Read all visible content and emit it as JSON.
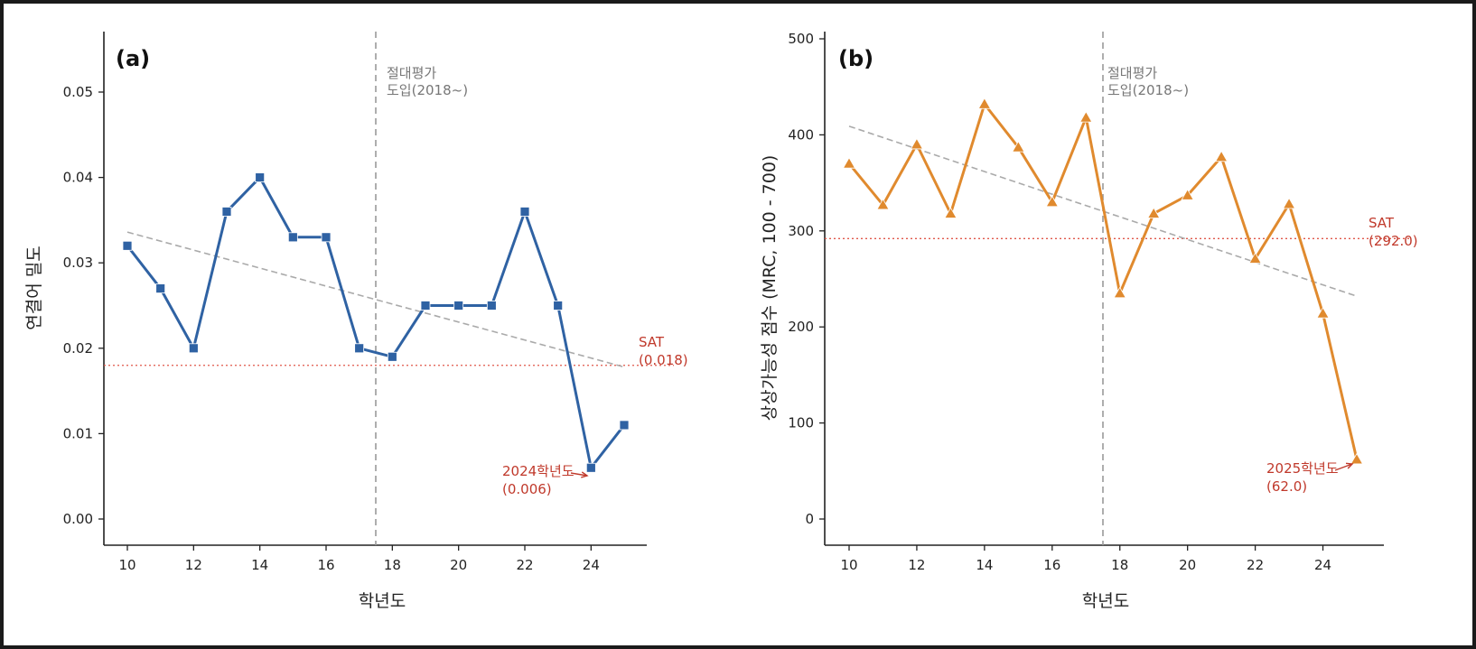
{
  "chart_data": [
    {
      "type": "line",
      "panel_label": "(a)",
      "xlabel": "학년도",
      "ylabel": "연결어 밀도",
      "xlim": [
        10,
        25
      ],
      "ylim": [
        0.0,
        0.05
      ],
      "xticks": [
        10,
        12,
        14,
        16,
        18,
        20,
        22,
        24
      ],
      "yticks": [
        "0.00",
        "0.01",
        "0.02",
        "0.03",
        "0.04",
        "0.05"
      ],
      "ytick_values": [
        0.0,
        0.01,
        0.02,
        0.03,
        0.04,
        0.05
      ],
      "color": "#2f62a3",
      "marker": "square",
      "x": [
        10,
        11,
        12,
        13,
        14,
        15,
        16,
        17,
        18,
        19,
        20,
        21,
        22,
        23,
        24,
        25
      ],
      "values": [
        0.032,
        0.027,
        0.02,
        0.036,
        0.04,
        0.033,
        0.033,
        0.02,
        0.019,
        0.025,
        0.025,
        0.025,
        0.036,
        0.025,
        0.006,
        0.011
      ],
      "trend": {
        "x": [
          10,
          25
        ],
        "y": [
          0.0336,
          0.0178
        ]
      },
      "reference_line": {
        "value": 0.018,
        "label_line1": "SAT",
        "label_line2": "(0.018)"
      },
      "vline": {
        "x": 17.5,
        "label_line1": "절대평가",
        "label_line2": "도입(2018~)"
      },
      "annotation": {
        "x": 24,
        "y": 0.006,
        "label_line1": "2024학년도",
        "label_line2": "(0.006)"
      },
      "grid": false
    },
    {
      "type": "line",
      "panel_label": "(b)",
      "xlabel": "학년도",
      "ylabel": "상상가능성 점수 (MRC, 100 - 700)",
      "xlim": [
        10,
        25
      ],
      "ylim": [
        0,
        500
      ],
      "xticks": [
        10,
        12,
        14,
        16,
        18,
        20,
        22,
        24
      ],
      "yticks": [
        "0",
        "100",
        "200",
        "300",
        "400",
        "500"
      ],
      "ytick_values": [
        0,
        100,
        200,
        300,
        400,
        500
      ],
      "color": "#e08a2e",
      "marker": "triangle",
      "x": [
        10,
        11,
        12,
        13,
        14,
        15,
        16,
        17,
        18,
        19,
        20,
        21,
        22,
        23,
        24,
        25
      ],
      "values": [
        370,
        327,
        390,
        318,
        432,
        387,
        330,
        418,
        235,
        318,
        337,
        377,
        271,
        328,
        214,
        62
      ],
      "trend": {
        "x": [
          10,
          25
        ],
        "y": [
          409,
          232
        ]
      },
      "reference_line": {
        "value": 292.0,
        "label_line1": "SAT",
        "label_line2": "(292.0)"
      },
      "vline": {
        "x": 17.5,
        "label_line1": "절대평가",
        "label_line2": "도입(2018~)"
      },
      "annotation": {
        "x": 25,
        "y": 62,
        "label_line1": "2025학년도",
        "label_line2": "(62.0)"
      },
      "grid": false
    }
  ]
}
